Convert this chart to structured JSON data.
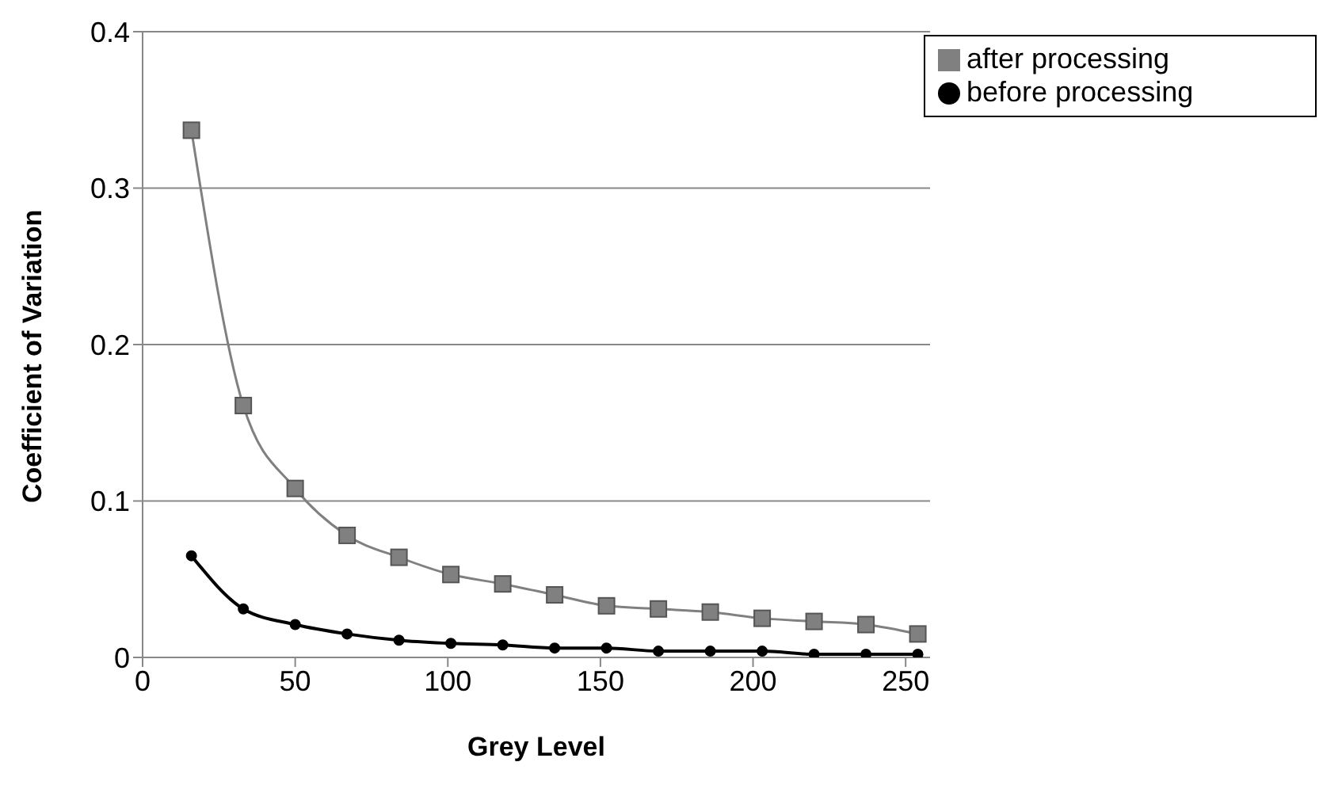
{
  "chart_data": {
    "type": "line",
    "xlabel": "Grey Level",
    "ylabel": "Coefficient of Variation",
    "x": [
      16,
      33,
      50,
      67,
      84,
      101,
      118,
      135,
      152,
      169,
      186,
      203,
      220,
      237,
      254
    ],
    "series": [
      {
        "name": "before processing",
        "color": "#000000",
        "marker": "circle",
        "values": [
          0.065,
          0.031,
          0.021,
          0.015,
          0.011,
          0.009,
          0.008,
          0.006,
          0.006,
          0.004,
          0.004,
          0.004,
          0.002,
          0.002,
          0.002
        ]
      },
      {
        "name": "after processing",
        "color": "#808080",
        "marker": "square",
        "values": [
          0.337,
          0.161,
          0.108,
          0.078,
          0.064,
          0.053,
          0.047,
          0.04,
          0.033,
          0.031,
          0.029,
          0.025,
          0.023,
          0.021,
          0.015
        ]
      }
    ],
    "xlim": [
      0,
      258
    ],
    "xticks": [
      0,
      50,
      100,
      150,
      200,
      250
    ],
    "ylim": [
      0,
      0.4
    ],
    "yticks": [
      0,
      0.1,
      0.2,
      0.3,
      0.4
    ],
    "grid": "y",
    "legend": "top right",
    "line_style": "solid"
  }
}
